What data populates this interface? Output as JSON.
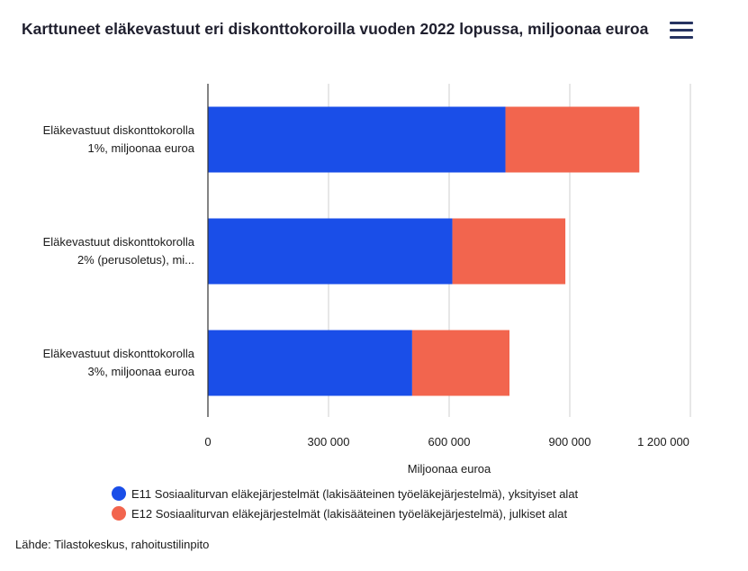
{
  "header": {
    "title": "Karttuneet eläkevastuut eri diskonttokoroilla vuoden 2022 lopussa, miljoonaa euroa",
    "menu_icon": "hamburger-menu-icon"
  },
  "colors": {
    "series1": "#1a4ee8",
    "series2": "#f2654e",
    "grid": "#cfcfcf",
    "axis": "#333333"
  },
  "chart_data": {
    "type": "bar",
    "orientation": "horizontal",
    "stacked": true,
    "categories": [
      [
        "Eläkevastuut diskonttokorolla",
        "1%, miljoonaa euroa"
      ],
      [
        "Eläkevastuut diskonttokorolla",
        "2% (perusoletus), mi..."
      ],
      [
        "Eläkevastuut diskonttokorolla",
        "3%, miljoonaa euroa"
      ]
    ],
    "series": [
      {
        "name": "E11 Sosiaaliturvan eläkejärjestelmät (lakisääteinen työeläkejärjestelmä), yksityiset alat",
        "values": [
          740000,
          608000,
          508000
        ]
      },
      {
        "name": "E12 Sosiaaliturvan eläkejärjestelmät (lakisääteinen työeläkejärjestelmä), julkiset alat",
        "values": [
          333000,
          281000,
          242000
        ]
      }
    ],
    "xlim": [
      0,
      1200000
    ],
    "xticks": [
      0,
      300000,
      600000,
      900000,
      1200000
    ],
    "xtick_labels": [
      "0",
      "300 000",
      "600 000",
      "900 000",
      "1 200 000"
    ],
    "xlabel": "Miljoonaa euroa",
    "grid": true,
    "legend_position": "bottom"
  },
  "footer": {
    "source": "Lähde: Tilastokeskus, rahoitustilinpito"
  }
}
